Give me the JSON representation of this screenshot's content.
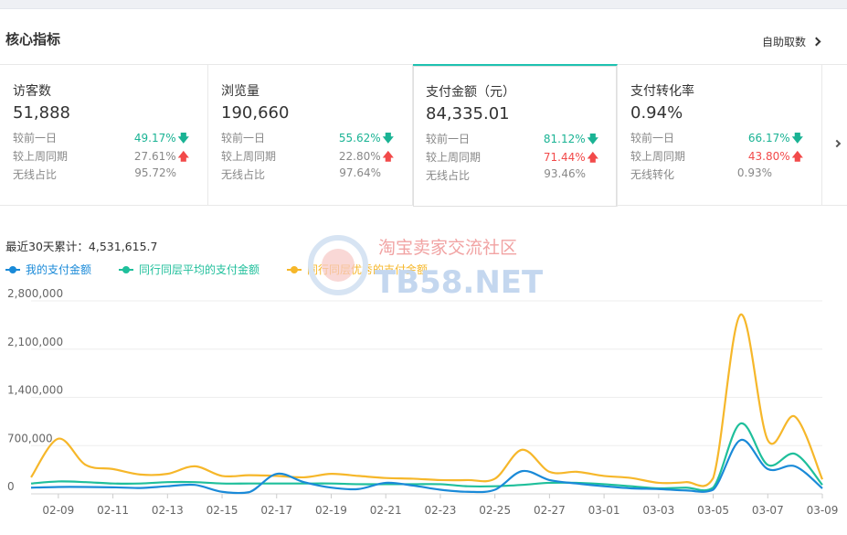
{
  "header": {
    "title": "核心指标",
    "self_help": "自助取数"
  },
  "cards": [
    {
      "label": "访客数",
      "value": "51,888",
      "rows": [
        {
          "label": "较前一日",
          "value": "49.17%",
          "trend": "down"
        },
        {
          "label": "较上周同期",
          "value": "27.61%",
          "trend": "up"
        },
        {
          "label": "无线占比",
          "value": "95.72%",
          "trend": "none"
        }
      ]
    },
    {
      "label": "浏览量",
      "value": "190,660",
      "rows": [
        {
          "label": "较前一日",
          "value": "55.62%",
          "trend": "down"
        },
        {
          "label": "较上周同期",
          "value": "22.80%",
          "trend": "up"
        },
        {
          "label": "无线占比",
          "value": "97.64%",
          "trend": "none"
        }
      ]
    },
    {
      "label": "支付金额（元）",
      "value": "84,335.01",
      "active": true,
      "rows": [
        {
          "label": "较前一日",
          "value": "81.12%",
          "trend": "down"
        },
        {
          "label": "较上周同期",
          "value": "71.44%",
          "trend": "up"
        },
        {
          "label": "无线占比",
          "value": "93.46%",
          "trend": "none"
        }
      ]
    },
    {
      "label": "支付转化率",
      "value": "0.94%",
      "rows": [
        {
          "label": "较前一日",
          "value": "66.17%",
          "trend": "down"
        },
        {
          "label": "较上周同期",
          "value": "43.80%",
          "trend": "up"
        },
        {
          "label": "无线转化",
          "value": "0.93%",
          "trend": "none"
        }
      ]
    }
  ],
  "cumulative": "最近30天累计：4,531,615.7",
  "watermark": {
    "cn": "淘宝卖家交流社区",
    "en": "TB58.NET"
  },
  "colors": {
    "accent": "#1ec2b1",
    "up": "#f24a4a",
    "down": "#1ab394",
    "series_my": "#1a8ad8",
    "series_avg": "#1fbf9b",
    "series_top": "#f6b72a"
  },
  "chart_data": {
    "type": "line",
    "title": "",
    "xlabel": "",
    "ylabel": "",
    "ylim": [
      0,
      2800000
    ],
    "yticks": [
      0,
      700000,
      1400000,
      2100000,
      2800000
    ],
    "ytick_labels": [
      "0",
      "700,000",
      "1,400,000",
      "2,100,000",
      "2,800,000"
    ],
    "xtick_labels": [
      "02-09",
      "02-11",
      "02-13",
      "02-15",
      "02-17",
      "02-19",
      "02-21",
      "02-23",
      "02-25",
      "02-27",
      "03-01",
      "03-03",
      "03-05",
      "03-07",
      "03-09"
    ],
    "x": [
      "02-08",
      "02-09",
      "02-10",
      "02-11",
      "02-12",
      "02-13",
      "02-14",
      "02-15",
      "02-16",
      "02-17",
      "02-18",
      "02-19",
      "02-20",
      "02-21",
      "02-22",
      "02-23",
      "02-24",
      "02-25",
      "02-26",
      "02-27",
      "02-28",
      "03-01",
      "03-02",
      "03-03",
      "03-04",
      "03-05",
      "03-06",
      "03-07",
      "03-08",
      "03-09"
    ],
    "legend_position": "top-left",
    "grid": true,
    "series": [
      {
        "name": "我的支付金额",
        "color": "#1a8ad8",
        "values": [
          90000,
          100000,
          100000,
          95000,
          85000,
          110000,
          130000,
          30000,
          25000,
          290000,
          170000,
          90000,
          70000,
          160000,
          120000,
          60000,
          30000,
          60000,
          330000,
          200000,
          150000,
          110000,
          80000,
          70000,
          50000,
          60000,
          780000,
          360000,
          400000,
          80000
        ]
      },
      {
        "name": "同行同层平均的支付金额",
        "color": "#1fbf9b",
        "values": [
          150000,
          180000,
          170000,
          150000,
          150000,
          170000,
          170000,
          150000,
          150000,
          150000,
          150000,
          150000,
          140000,
          140000,
          140000,
          140000,
          110000,
          110000,
          130000,
          160000,
          160000,
          140000,
          110000,
          80000,
          90000,
          90000,
          1020000,
          420000,
          580000,
          130000
        ]
      },
      {
        "name": "同行同层优秀的支付金额",
        "color": "#f6b72a",
        "values": [
          240000,
          800000,
          420000,
          360000,
          280000,
          290000,
          400000,
          260000,
          270000,
          260000,
          240000,
          290000,
          260000,
          230000,
          220000,
          200000,
          200000,
          220000,
          640000,
          320000,
          320000,
          260000,
          230000,
          160000,
          170000,
          230000,
          2600000,
          780000,
          1120000,
          210000
        ]
      }
    ]
  }
}
